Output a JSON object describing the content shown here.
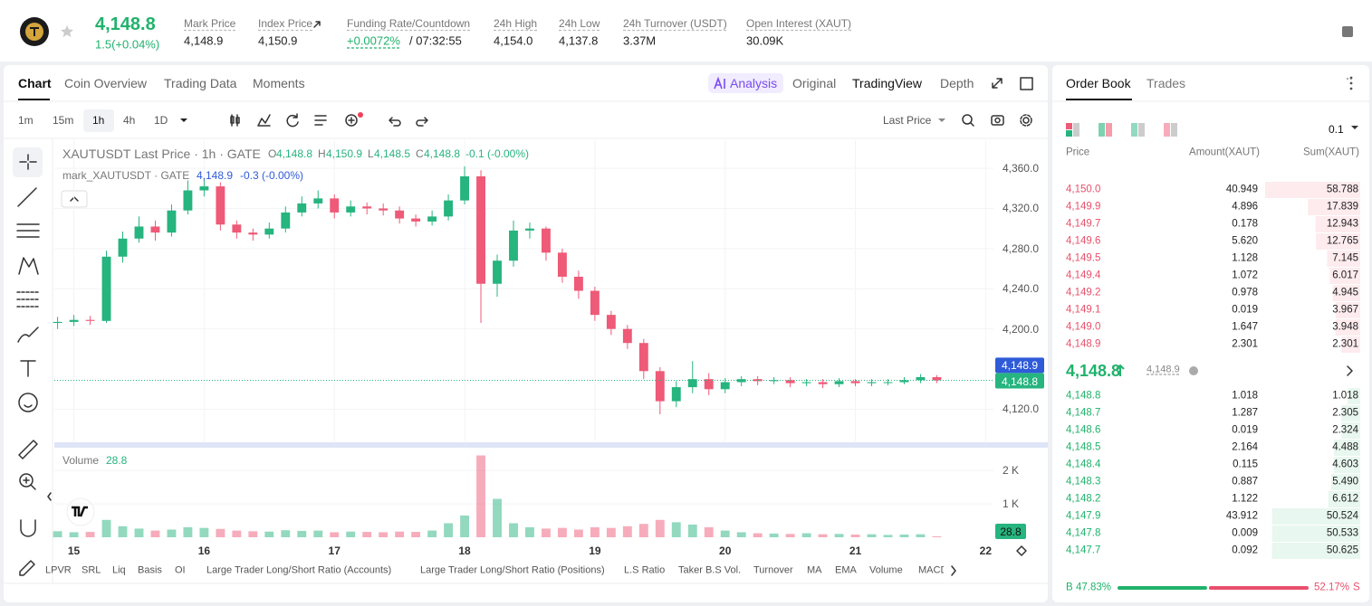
{
  "header": {
    "price": "4,148.8",
    "change": "1.5(+0.04%)",
    "stats": [
      {
        "label": "Mark Price",
        "value": "4,148.9"
      },
      {
        "label": "Index Price",
        "value": "4,150.9"
      },
      {
        "label": "Funding Rate/Countdown",
        "value": "+0.0072%",
        "value2": "/ 07:32:55"
      },
      {
        "label": "24h High",
        "value": "4,154.0"
      },
      {
        "label": "24h Low",
        "value": "4,137.8"
      },
      {
        "label": "24h Turnover (USDT)",
        "value": "3.37M"
      },
      {
        "label": "Open Interest (XAUT)",
        "value": "30.09K"
      }
    ]
  },
  "chart_tabs": [
    "Chart",
    "Coin Overview",
    "Trading Data",
    "Moments"
  ],
  "analysis": "Analysis",
  "views": [
    "Original",
    "TradingView",
    "Depth"
  ],
  "intervals": [
    "1m",
    "15m",
    "1h",
    "4h",
    "1D"
  ],
  "price_type": "Last Price",
  "chart_data": {
    "type": "candlestick",
    "title": "XAUTUSDT Last Price · 1h · GATE",
    "legend": [
      {
        "key": "O",
        "value": "4,148.8"
      },
      {
        "key": "H",
        "value": "4,150.9"
      },
      {
        "key": "L",
        "value": "4,148.5"
      },
      {
        "key": "C",
        "value": "4,148.8"
      }
    ],
    "legend_change": "-0.1 (-0.00%)",
    "mark_title": "mark_XAUTUSDT · GATE",
    "mark_value": "4,148.9",
    "mark_change": "-0.3 (-0.00%)",
    "volume_label": "Volume",
    "up_color": "#26b47f",
    "down_color": "#ee5a77",
    "x": [
      14.875,
      15,
      15.125,
      15.25,
      15.375,
      15.5,
      15.625,
      15.75,
      15.875,
      16,
      16.125,
      16.25,
      16.375,
      16.5,
      16.625,
      16.75,
      16.875,
      17,
      17.125,
      17.25,
      17.375,
      17.5,
      17.625,
      17.75,
      17.875,
      18,
      18.125,
      18.25,
      18.375,
      18.5,
      18.625,
      18.75,
      18.875,
      19,
      19.125,
      19.25,
      19.375,
      19.5,
      19.625,
      19.75,
      19.875,
      20,
      20.125,
      20.25,
      20.375,
      20.5,
      20.625,
      20.75,
      20.875,
      21,
      21.125,
      21.25,
      21.375,
      21.5,
      21.625
    ],
    "open": [
      4206,
      4207,
      4209,
      4208,
      4272,
      4290,
      4302,
      4296,
      4318,
      4338,
      4342,
      4304,
      4296,
      4294,
      4300,
      4316,
      4325,
      4330,
      4316,
      4322,
      4320,
      4318,
      4310,
      4307,
      4312,
      4328,
      4352,
      4245,
      4268,
      4298,
      4300,
      4276,
      4252,
      4238,
      4214,
      4200,
      4186,
      4158,
      4128,
      4142,
      4150,
      4140,
      4147,
      4150,
      4148,
      4149,
      4146,
      4147,
      4145,
      4148,
      4146,
      4147,
      4147,
      4149,
      4152
    ],
    "high": [
      4212,
      4214,
      4213,
      4278,
      4297,
      4312,
      4308,
      4324,
      4348,
      4350,
      4346,
      4308,
      4300,
      4306,
      4322,
      4332,
      4338,
      4334,
      4328,
      4326,
      4325,
      4322,
      4314,
      4318,
      4334,
      4362,
      4358,
      4274,
      4308,
      4306,
      4302,
      4280,
      4258,
      4242,
      4218,
      4204,
      4190,
      4162,
      4148,
      4168,
      4156,
      4151,
      4153,
      4153,
      4152,
      4152,
      4150,
      4150,
      4151,
      4150,
      4150,
      4150,
      4152,
      4155,
      4154
    ],
    "low": [
      4200,
      4203,
      4204,
      4206,
      4266,
      4286,
      4288,
      4292,
      4314,
      4332,
      4298,
      4290,
      4288,
      4290,
      4296,
      4312,
      4320,
      4310,
      4312,
      4314,
      4313,
      4305,
      4302,
      4303,
      4308,
      4324,
      4206,
      4232,
      4262,
      4290,
      4268,
      4246,
      4230,
      4208,
      4194,
      4180,
      4150,
      4115,
      4122,
      4136,
      4134,
      4136,
      4143,
      4144,
      4145,
      4142,
      4143,
      4141,
      4142,
      4143,
      4143,
      4144,
      4145,
      4146,
      4146
    ],
    "close": [
      4207,
      4209,
      4208,
      4272,
      4290,
      4302,
      4296,
      4318,
      4338,
      4342,
      4304,
      4296,
      4294,
      4300,
      4316,
      4325,
      4330,
      4316,
      4322,
      4320,
      4318,
      4310,
      4307,
      4312,
      4328,
      4352,
      4245,
      4268,
      4298,
      4300,
      4276,
      4252,
      4238,
      4214,
      4200,
      4186,
      4158,
      4128,
      4142,
      4150,
      4140,
      4147,
      4150,
      4148,
      4149,
      4146,
      4147,
      4145,
      4148,
      4146,
      4147,
      4147,
      4149,
      4152,
      4148.8
    ],
    "volume": [
      180,
      150,
      160,
      520,
      330,
      260,
      200,
      230,
      300,
      280,
      250,
      200,
      180,
      170,
      210,
      190,
      200,
      150,
      170,
      160,
      150,
      170,
      160,
      200,
      420,
      650,
      2450,
      1150,
      420,
      300,
      260,
      280,
      230,
      300,
      280,
      330,
      400,
      520,
      450,
      380,
      300,
      200,
      150,
      120,
      110,
      100,
      120,
      90,
      100,
      80,
      90,
      70,
      80,
      90,
      28.8
    ],
    "xlim": [
      14.85,
      22.06
    ],
    "xticks": [
      15,
      16,
      17,
      18,
      19,
      20,
      21,
      22
    ],
    "ylim": [
      4088,
      4388
    ],
    "yticks": [
      {
        "value": 4360,
        "label": "4,360.0"
      },
      {
        "value": 4320,
        "label": "4,320.0"
      },
      {
        "value": 4280,
        "label": "4,280.0"
      },
      {
        "value": 4240,
        "label": "4,240.0"
      },
      {
        "value": 4200,
        "label": "4,200.0"
      },
      {
        "value": 4120,
        "label": "4,120.0"
      }
    ],
    "volume_ylim": [
      0,
      2600
    ],
    "volume_yticks": [
      {
        "value": 2000,
        "label": "2 K"
      },
      {
        "value": 1000,
        "label": "1 K"
      }
    ],
    "last_price": {
      "value": 4148.8,
      "label": "4,148.8"
    },
    "mark_price": {
      "value": 4148.9,
      "label": "4,148.9"
    }
  },
  "indicators": [
    "LPVR",
    "SRL",
    "Liq",
    "Basis",
    "OI",
    "Large Trader Long/Short Ratio (Accounts)",
    "Large Trader Long/Short Ratio (Positions)",
    "L.S Ratio",
    "Taker B.S Vol.",
    "Turnover",
    "MA",
    "EMA",
    "Volume",
    "MACD"
  ],
  "order_book": {
    "tabs": [
      "Order Book",
      "Trades"
    ],
    "precision": "0.1",
    "columns": [
      "Price",
      "Amount(XAUT)",
      "Sum(XAUT)"
    ],
    "asks": [
      {
        "price": "4,150.0",
        "amount": "40.949",
        "sum": 58.788
      },
      {
        "price": "4,149.9",
        "amount": "4.896",
        "sum": 17.839
      },
      {
        "price": "4,149.7",
        "amount": "0.178",
        "sum": 12.943
      },
      {
        "price": "4,149.6",
        "amount": "5.620",
        "sum": 12.765
      },
      {
        "price": "4,149.5",
        "amount": "1.128",
        "sum": 7.145
      },
      {
        "price": "4,149.4",
        "amount": "1.072",
        "sum": 6.017
      },
      {
        "price": "4,149.2",
        "amount": "0.978",
        "sum": 4.945
      },
      {
        "price": "4,149.1",
        "amount": "0.019",
        "sum": 3.967
      },
      {
        "price": "4,149.0",
        "amount": "1.647",
        "sum": 3.948
      },
      {
        "price": "4,148.9",
        "amount": "2.301",
        "sum": 2.301
      }
    ],
    "mid_price": "4,148.8",
    "mid_mark": "4,148.9",
    "bids": [
      {
        "price": "4,148.8",
        "amount": "1.018",
        "sum": 1.018
      },
      {
        "price": "4,148.7",
        "amount": "1.287",
        "sum": 2.305
      },
      {
        "price": "4,148.6",
        "amount": "0.019",
        "sum": 2.324
      },
      {
        "price": "4,148.5",
        "amount": "2.164",
        "sum": 4.488
      },
      {
        "price": "4,148.4",
        "amount": "0.115",
        "sum": 4.603
      },
      {
        "price": "4,148.3",
        "amount": "0.887",
        "sum": {
          "value": 5.49,
          "label": "5.490"
        }
      },
      {
        "price": "4,148.2",
        "amount": "1.122",
        "sum": 6.612
      },
      {
        "price": "4,147.9",
        "amount": "43.912",
        "sum": 50.524
      },
      {
        "price": "4,147.8",
        "amount": "0.009",
        "sum": 50.533
      },
      {
        "price": "4,147.7",
        "amount": "0.092",
        "sum": 50.625
      }
    ],
    "buy_letter": "B",
    "sell_letter": "S",
    "buy": {
      "value": 47.83,
      "label": "47.83%"
    },
    "sell": {
      "value": 52.17,
      "label": "52.17%"
    }
  }
}
